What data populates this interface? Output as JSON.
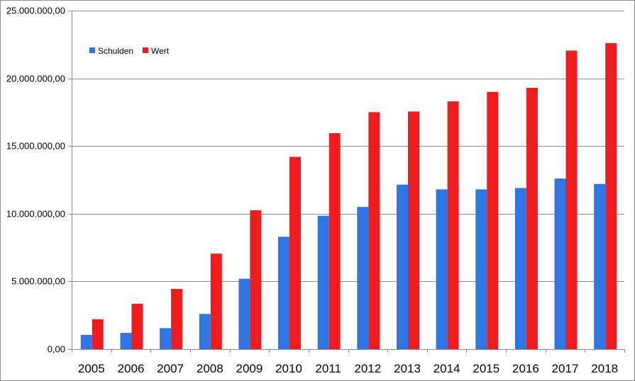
{
  "chart_data": {
    "type": "bar",
    "categories": [
      "2005",
      "2006",
      "2007",
      "2008",
      "2009",
      "2010",
      "2011",
      "2012",
      "2013",
      "2014",
      "2015",
      "2016",
      "2017",
      "2018"
    ],
    "series": [
      {
        "name": "Schulden",
        "color": "#2e75e6",
        "values": [
          1050000,
          1200000,
          1550000,
          2600000,
          5200000,
          8300000,
          9850000,
          10500000,
          12150000,
          11800000,
          11800000,
          11900000,
          12600000,
          12200000
        ]
      },
      {
        "name": "Wert",
        "color": "#ee1c1c",
        "values": [
          2200000,
          3350000,
          4450000,
          7050000,
          10250000,
          14200000,
          15950000,
          17500000,
          17550000,
          18300000,
          19000000,
          19300000,
          22050000,
          22600000
        ]
      }
    ],
    "ylim": [
      0,
      25000000
    ],
    "yticks": [
      0,
      5000000,
      10000000,
      15000000,
      20000000,
      25000000
    ],
    "ytick_labels": [
      "0,00",
      "5.000.000,00",
      "10.000.000,00",
      "15.000.000,00",
      "20.000.000,00",
      "25.000.000,00"
    ],
    "grid": true,
    "legend_position": "top-left",
    "title": "",
    "xlabel": "",
    "ylabel": ""
  }
}
